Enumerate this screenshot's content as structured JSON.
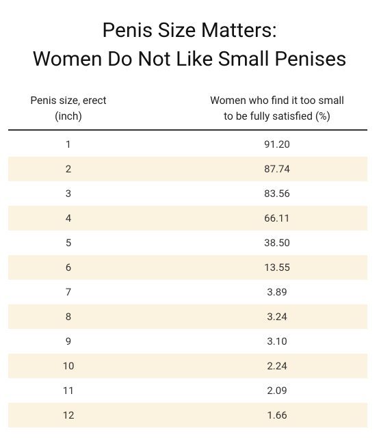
{
  "header": {
    "title": [
      "Penis Size Matters:",
      "Women Do Not Like Small Penises"
    ]
  },
  "table": {
    "columns": [
      [
        "Penis size, erect",
        "(inch)"
      ],
      [
        "Women who find it too small",
        "to be fully satisfied (%)"
      ]
    ],
    "rows": [
      [
        "1",
        "91.20"
      ],
      [
        "2",
        "87.74"
      ],
      [
        "3",
        "83.56"
      ],
      [
        "4",
        "66.11"
      ],
      [
        "5",
        "38.50"
      ],
      [
        "6",
        "13.55"
      ],
      [
        "7",
        "3.89"
      ],
      [
        "8",
        "3.24"
      ],
      [
        "9",
        "3.10"
      ],
      [
        "10",
        "2.24"
      ],
      [
        "11",
        "2.09"
      ],
      [
        "12",
        "1.66"
      ]
    ]
  }
}
